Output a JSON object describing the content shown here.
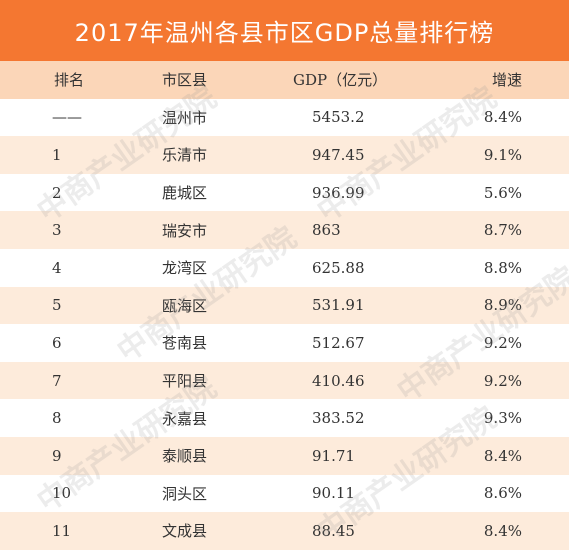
{
  "title": "2017年温州各县市区GDP总量排行榜",
  "headers": {
    "rank": "排名",
    "city": "市区县",
    "gdp": "GDP（亿元）",
    "growth": "增速"
  },
  "rows": [
    {
      "rank": "——",
      "city": "温州市",
      "gdp": "5453.2",
      "growth": "8.4%"
    },
    {
      "rank": "1",
      "city": "乐清市",
      "gdp": "947.45",
      "growth": "9.1%"
    },
    {
      "rank": "2",
      "city": "鹿城区",
      "gdp": "936.99",
      "growth": "5.6%"
    },
    {
      "rank": "3",
      "city": "瑞安市",
      "gdp": "863",
      "growth": "8.7%"
    },
    {
      "rank": "4",
      "city": "龙湾区",
      "gdp": "625.88",
      "growth": "8.8%"
    },
    {
      "rank": "5",
      "city": "瓯海区",
      "gdp": "531.91",
      "growth": "8.9%"
    },
    {
      "rank": "6",
      "city": "苍南县",
      "gdp": "512.67",
      "growth": "9.2%"
    },
    {
      "rank": "7",
      "city": "平阳县",
      "gdp": "410.46",
      "growth": "9.2%"
    },
    {
      "rank": "8",
      "city": "永嘉县",
      "gdp": "383.52",
      "growth": "9.3%"
    },
    {
      "rank": "9",
      "city": "泰顺县",
      "gdp": "91.71",
      "growth": "8.4%"
    },
    {
      "rank": "10",
      "city": "洞头区",
      "gdp": "90.11",
      "growth": "8.6%"
    },
    {
      "rank": "11",
      "city": "文成县",
      "gdp": "88.45",
      "growth": "8.4%"
    }
  ],
  "watermark": "中商产业研究院"
}
